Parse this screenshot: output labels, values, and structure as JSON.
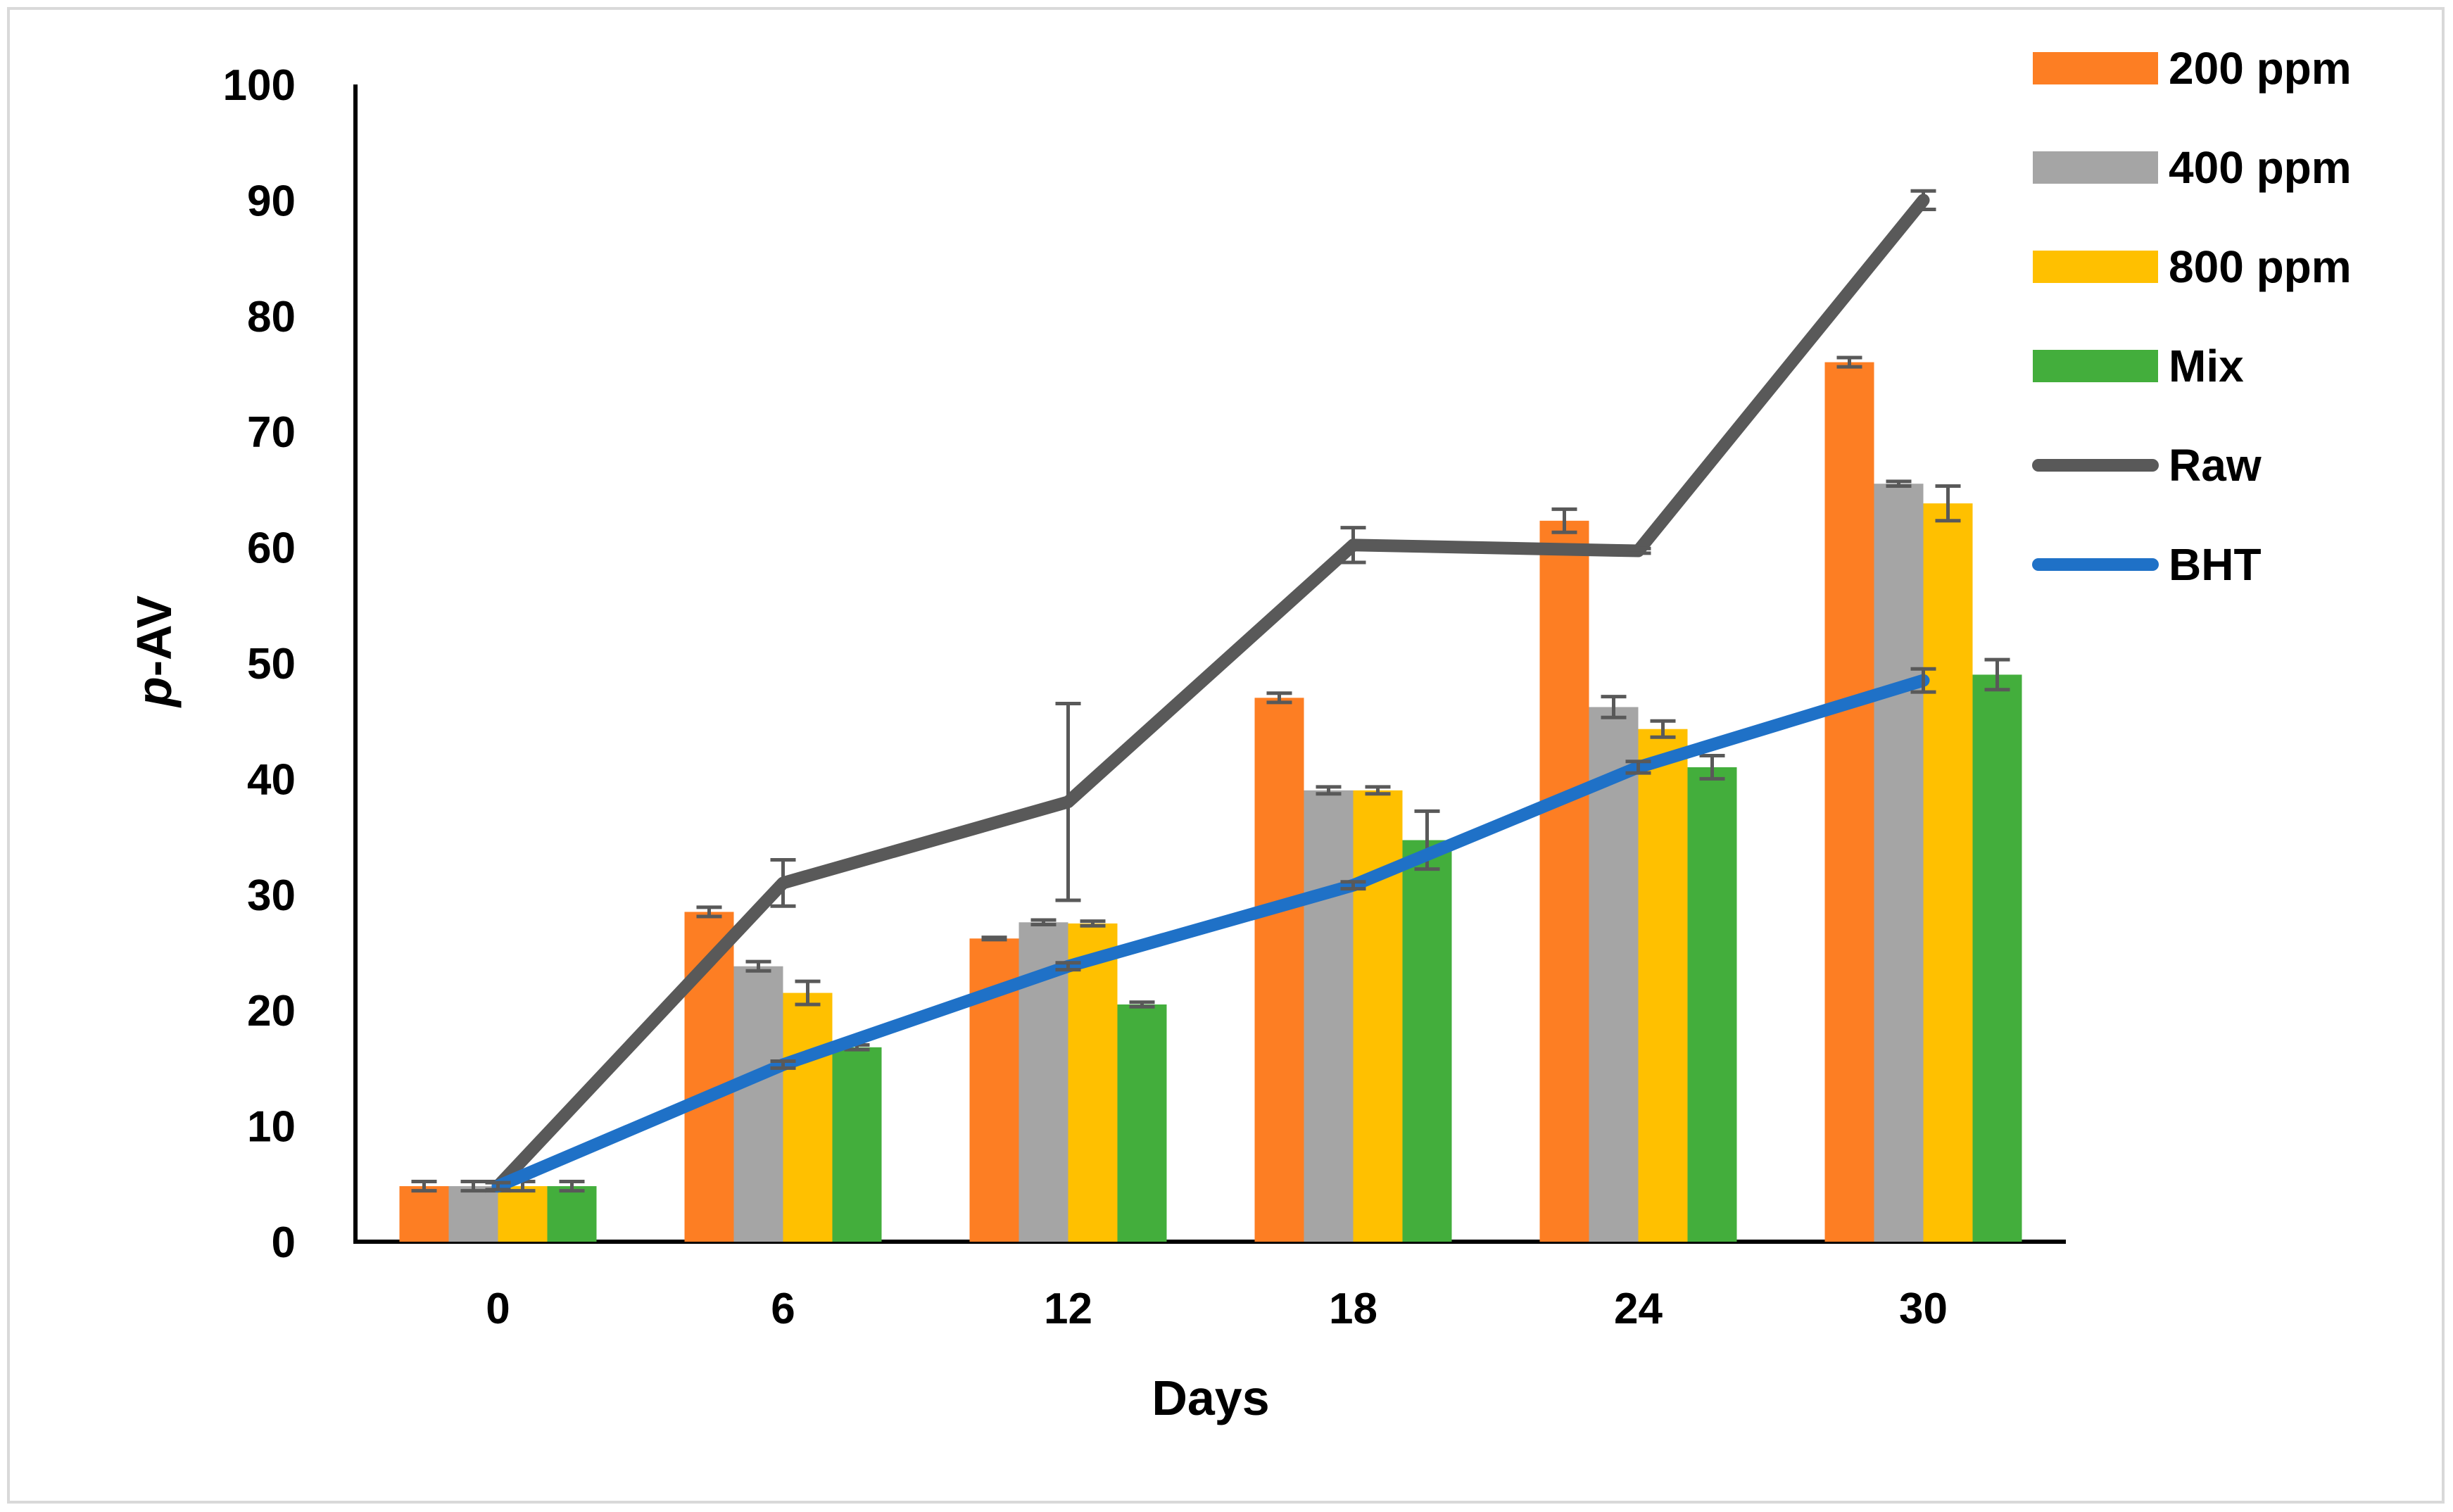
{
  "chart_data": {
    "type": "bar",
    "title": "",
    "xlabel": "Days",
    "ylabel_prefix": "p",
    "ylabel_suffix": "-AV",
    "ylim": [
      0,
      100
    ],
    "yticks": [
      0,
      10,
      20,
      30,
      40,
      50,
      60,
      70,
      80,
      90,
      100
    ],
    "categories": [
      "0",
      "6",
      "12",
      "18",
      "24",
      "30"
    ],
    "grid": false,
    "legend_position": "right",
    "series": [
      {
        "name": "200 ppm",
        "kind": "bar",
        "color": "#fd7e23",
        "values": [
          4.8,
          28.5,
          26.2,
          47.0,
          62.3,
          76.0
        ],
        "errors": [
          0.4,
          0.4,
          0.1,
          0.4,
          1.0,
          0.4
        ]
      },
      {
        "name": "400 ppm",
        "kind": "bar",
        "color": "#a5a5a5",
        "values": [
          4.8,
          23.8,
          27.6,
          39.0,
          46.2,
          65.5
        ],
        "errors": [
          0.4,
          0.4,
          0.2,
          0.3,
          0.9,
          0.2
        ]
      },
      {
        "name": "800 ppm",
        "kind": "bar",
        "color": "#ffc000",
        "values": [
          4.8,
          21.5,
          27.5,
          39.0,
          44.3,
          63.8
        ],
        "errors": [
          0.4,
          1.0,
          0.2,
          0.3,
          0.7,
          1.5
        ]
      },
      {
        "name": "Mix",
        "kind": "bar",
        "color": "#43ae3c",
        "values": [
          4.8,
          16.8,
          20.5,
          34.7,
          41.0,
          49.0
        ],
        "errors": [
          0.4,
          0.2,
          0.2,
          2.5,
          1.0,
          1.3
        ]
      },
      {
        "name": "Raw",
        "kind": "line",
        "color": "#595959",
        "values": [
          4.8,
          31.0,
          38.0,
          60.2,
          59.7,
          90.0
        ],
        "errors": [
          0.4,
          2.0,
          8.5,
          1.5,
          0.2,
          0.8
        ]
      },
      {
        "name": "BHT",
        "kind": "line",
        "color": "#1f71c7",
        "values": [
          4.8,
          15.3,
          23.8,
          30.8,
          41.0,
          48.5
        ],
        "errors": [
          0.3,
          0.3,
          0.3,
          0.3,
          0.5,
          1.0
        ]
      }
    ]
  }
}
